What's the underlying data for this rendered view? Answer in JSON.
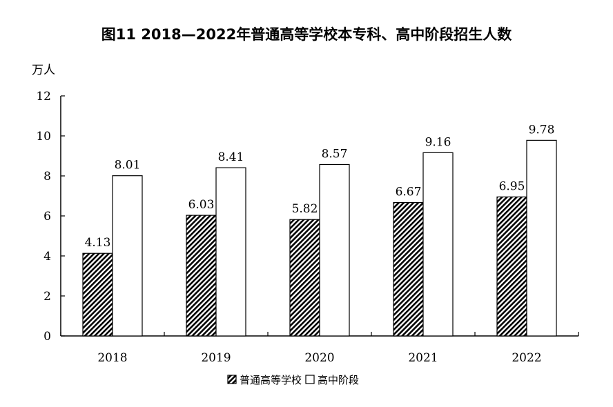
{
  "chart_data": {
    "type": "bar",
    "title": "图11  2018—2022年普通高等学校本专科、高中阶段招生人数",
    "ylabel": "万人",
    "xlabel": "",
    "categories": [
      "2018",
      "2019",
      "2020",
      "2021",
      "2022"
    ],
    "series": [
      {
        "name": "普通高等学校",
        "values": [
          4.13,
          6.03,
          5.82,
          6.67,
          6.95
        ],
        "fill": "hatched"
      },
      {
        "name": "高中阶段",
        "values": [
          8.01,
          8.41,
          8.57,
          9.16,
          9.78
        ],
        "fill": "white"
      }
    ],
    "ylim": [
      0,
      12
    ],
    "yticks": [
      0,
      2,
      4,
      6,
      8,
      10,
      12
    ],
    "grid": false,
    "legend_position": "bottom-center",
    "colors": {
      "stroke": "#000000",
      "hatch_fill": "#000000",
      "plain_fill": "#ffffff"
    }
  }
}
